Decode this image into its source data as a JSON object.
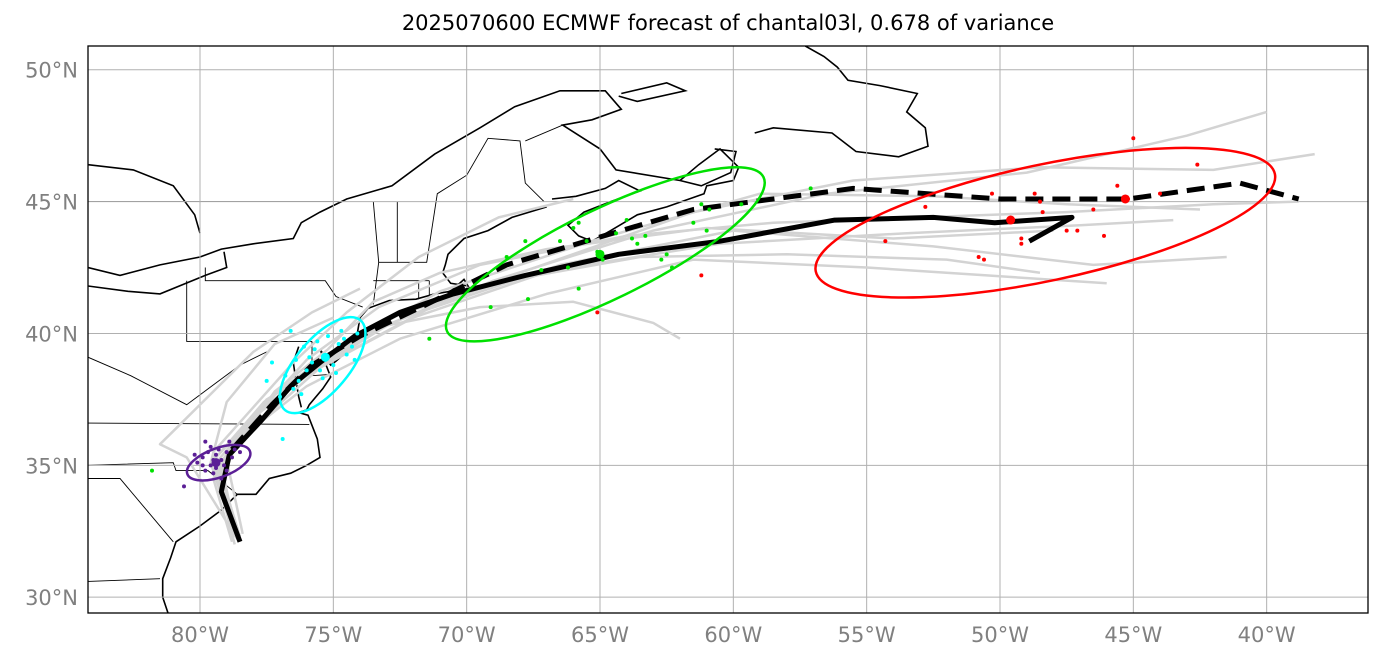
{
  "title": "2025070600 ECMWF forecast of chantal03l, 0.678 of variance",
  "axes": {
    "lat_labels": [
      "30°N",
      "35°N",
      "40°N",
      "45°N",
      "50°N"
    ],
    "lon_labels": [
      "80°W",
      "75°W",
      "70°W",
      "65°W",
      "60°W",
      "55°W",
      "50°W",
      "45°W",
      "40°W"
    ]
  },
  "colors": {
    "ensemble": "#d3d3d3",
    "track": "#000000",
    "stage1": "#5b1f96",
    "stage2": "#00ffff",
    "stage3": "#00e000",
    "stage4": "#ff0000",
    "grid": "#b0b0b0",
    "coast": "#000000"
  },
  "chart_data": {
    "type": "map-track",
    "domain": {
      "lon": [
        -84.2,
        -36.2
      ],
      "lat": [
        29.4,
        50.9
      ]
    },
    "gridlines": {
      "lon": [
        -80,
        -75,
        -70,
        -65,
        -60,
        -55,
        -50,
        -45,
        -40
      ],
      "lat": [
        30,
        35,
        40,
        45,
        50
      ]
    },
    "mean_track_solid": [
      [
        -78.5,
        32.1
      ],
      [
        -79.2,
        34.0
      ],
      [
        -78.9,
        35.4
      ],
      [
        -77.7,
        36.7
      ],
      [
        -76.6,
        38.0
      ],
      [
        -75.5,
        38.9
      ],
      [
        -74.2,
        39.9
      ],
      [
        -72.5,
        40.8
      ],
      [
        -70.5,
        41.5
      ],
      [
        -67.8,
        42.2
      ],
      [
        -64.3,
        43.0
      ],
      [
        -60.5,
        43.5
      ],
      [
        -56.2,
        44.3
      ],
      [
        -52.5,
        44.4
      ],
      [
        -50.2,
        44.2
      ],
      [
        -47.3,
        44.4
      ],
      [
        -48.9,
        43.5
      ]
    ],
    "mean_track_dashed": [
      [
        -78.8,
        35.6
      ],
      [
        -77.3,
        37.3
      ],
      [
        -75.8,
        38.8
      ],
      [
        -74.0,
        39.9
      ],
      [
        -71.5,
        41.1
      ],
      [
        -68.5,
        42.6
      ],
      [
        -64.2,
        43.9
      ],
      [
        -61.5,
        44.7
      ],
      [
        -55.5,
        45.5
      ],
      [
        -50.0,
        45.1
      ],
      [
        -45.2,
        45.1
      ],
      [
        -41.0,
        45.7
      ],
      [
        -38.8,
        45.1
      ]
    ],
    "ensemble_tracks": [
      [
        [
          -78.8,
          32.1
        ],
        [
          -79.5,
          34.5
        ],
        [
          -78.2,
          36.3
        ],
        [
          -76.3,
          38.2
        ],
        [
          -73.5,
          40.1
        ],
        [
          -69.0,
          42.0
        ],
        [
          -63.0,
          43.9
        ],
        [
          -56.5,
          45.3
        ],
        [
          -49.0,
          46.1
        ],
        [
          -43.0,
          47.5
        ],
        [
          -40.0,
          48.4
        ]
      ],
      [
        [
          -78.6,
          32.3
        ],
        [
          -79.6,
          35.1
        ],
        [
          -77.8,
          37.0
        ],
        [
          -75.9,
          38.6
        ],
        [
          -72.8,
          40.4
        ],
        [
          -68.0,
          42.3
        ],
        [
          -61.5,
          44.6
        ],
        [
          -55.5,
          45.8
        ],
        [
          -48.5,
          46.3
        ],
        [
          -42.0,
          46.2
        ],
        [
          -38.2,
          46.8
        ]
      ],
      [
        [
          -78.5,
          32.2
        ],
        [
          -79.3,
          35.0
        ],
        [
          -77.5,
          37.5
        ],
        [
          -75.0,
          39.0
        ],
        [
          -71.5,
          40.9
        ],
        [
          -66.5,
          42.6
        ],
        [
          -60.0,
          43.9
        ],
        [
          -52.5,
          43.3
        ],
        [
          -46.5,
          42.6
        ],
        [
          -41.5,
          42.9
        ]
      ],
      [
        [
          -78.7,
          32.0
        ],
        [
          -79.4,
          34.8
        ],
        [
          -78.0,
          36.8
        ],
        [
          -76.0,
          38.4
        ],
        [
          -73.0,
          40.3
        ],
        [
          -69.5,
          41.0
        ],
        [
          -66.0,
          41.2
        ],
        [
          -63.0,
          40.4
        ],
        [
          -62.0,
          39.8
        ]
      ],
      [
        [
          -78.4,
          32.4
        ],
        [
          -79.0,
          35.2
        ],
        [
          -77.2,
          37.8
        ],
        [
          -75.2,
          39.4
        ],
        [
          -73.5,
          41.2
        ],
        [
          -71.0,
          42.3
        ],
        [
          -67.0,
          43.2
        ],
        [
          -61.0,
          44.0
        ],
        [
          -54.0,
          43.6
        ],
        [
          -48.0,
          43.9
        ]
      ],
      [
        [
          -78.6,
          32.2
        ],
        [
          -79.5,
          35.5
        ],
        [
          -78.0,
          37.2
        ],
        [
          -76.5,
          38.9
        ],
        [
          -74.5,
          40.8
        ],
        [
          -71.8,
          42.9
        ],
        [
          -68.8,
          44.4
        ],
        [
          -66.0,
          45.1
        ]
      ],
      [
        [
          -78.5,
          32.3
        ],
        [
          -79.3,
          34.9
        ],
        [
          -77.9,
          36.5
        ],
        [
          -76.0,
          38.0
        ],
        [
          -72.5,
          39.8
        ],
        [
          -67.0,
          41.5
        ],
        [
          -61.5,
          42.8
        ],
        [
          -55.0,
          42.5
        ],
        [
          -50.5,
          42.2
        ],
        [
          -46.0,
          41.9
        ]
      ],
      [
        [
          -78.6,
          32.2
        ],
        [
          -79.2,
          35.0
        ],
        [
          -77.5,
          36.9
        ],
        [
          -75.5,
          38.7
        ],
        [
          -72.0,
          40.6
        ],
        [
          -66.8,
          42.4
        ],
        [
          -60.5,
          43.4
        ],
        [
          -53.5,
          43.8
        ],
        [
          -47.0,
          44.1
        ],
        [
          -43.5,
          44.3
        ]
      ],
      [
        [
          -78.5,
          32.1
        ],
        [
          -79.4,
          35.3
        ],
        [
          -77.6,
          37.4
        ],
        [
          -75.2,
          39.2
        ],
        [
          -71.0,
          41.6
        ],
        [
          -65.0,
          43.6
        ],
        [
          -59.0,
          45.3
        ],
        [
          -52.5,
          45.2
        ],
        [
          -47.5,
          44.9
        ],
        [
          -42.5,
          44.7
        ]
      ],
      [
        [
          -78.6,
          32.2
        ],
        [
          -80.5,
          35.3
        ],
        [
          -81.5,
          35.8
        ],
        [
          -80.8,
          36.5
        ],
        [
          -79.5,
          37.8
        ],
        [
          -78.0,
          39.3
        ],
        [
          -75.8,
          40.8
        ],
        [
          -74.0,
          41.7
        ]
      ],
      [
        [
          -78.7,
          32.3
        ],
        [
          -79.6,
          35.1
        ],
        [
          -79.0,
          37.4
        ],
        [
          -77.2,
          39.6
        ],
        [
          -75.0,
          40.6
        ]
      ],
      [
        [
          -78.5,
          32.2
        ],
        [
          -79.3,
          35.0
        ],
        [
          -77.7,
          37.1
        ],
        [
          -76.0,
          39.0
        ],
        [
          -73.3,
          41.0
        ],
        [
          -69.5,
          42.6
        ],
        [
          -64.0,
          43.7
        ],
        [
          -58.5,
          44.2
        ],
        [
          -53.0,
          44.4
        ],
        [
          -47.5,
          44.6
        ],
        [
          -42.0,
          44.9
        ],
        [
          -38.8,
          45.0
        ]
      ],
      [
        [
          -78.5,
          32.2
        ],
        [
          -79.4,
          35.1
        ],
        [
          -77.8,
          37.0
        ],
        [
          -75.7,
          38.8
        ],
        [
          -72.6,
          40.7
        ],
        [
          -68.5,
          42.0
        ],
        [
          -63.5,
          42.9
        ],
        [
          -58.0,
          43.0
        ],
        [
          -52.0,
          42.8
        ],
        [
          -48.5,
          42.3
        ]
      ]
    ],
    "stage_points": {
      "stage1": [
        [
          -79.6,
          35.0
        ],
        [
          -79.2,
          35.2
        ],
        [
          -79.9,
          35.3
        ],
        [
          -79.4,
          34.9
        ],
        [
          -79.0,
          35.5
        ],
        [
          -79.8,
          34.8
        ],
        [
          -79.3,
          35.6
        ],
        [
          -79.7,
          35.5
        ],
        [
          -79.1,
          35.0
        ],
        [
          -79.5,
          34.7
        ],
        [
          -78.8,
          35.3
        ],
        [
          -80.1,
          35.1
        ],
        [
          -79.0,
          34.8
        ],
        [
          -79.6,
          35.7
        ],
        [
          -79.9,
          35.0
        ],
        [
          -78.7,
          35.6
        ],
        [
          -79.4,
          35.4
        ],
        [
          -80.2,
          35.4
        ],
        [
          -78.5,
          35.5
        ],
        [
          -79.2,
          34.5
        ],
        [
          -80.6,
          34.2
        ],
        [
          -79.8,
          35.9
        ],
        [
          -78.9,
          35.9
        ],
        [
          -79.5,
          35.2
        ]
      ],
      "stage2": [
        [
          -74.8,
          39.6
        ],
        [
          -75.3,
          39.0
        ],
        [
          -76.0,
          38.6
        ],
        [
          -74.5,
          39.2
        ],
        [
          -75.7,
          39.4
        ],
        [
          -76.3,
          38.2
        ],
        [
          -75.0,
          38.8
        ],
        [
          -74.6,
          39.8
        ],
        [
          -75.9,
          39.1
        ],
        [
          -76.5,
          37.9
        ],
        [
          -75.5,
          38.6
        ],
        [
          -74.3,
          39.5
        ],
        [
          -76.8,
          38.4
        ],
        [
          -77.3,
          38.9
        ],
        [
          -75.2,
          39.9
        ],
        [
          -76.1,
          39.5
        ],
        [
          -74.9,
          38.5
        ],
        [
          -77.0,
          37.6
        ],
        [
          -76.6,
          40.1
        ],
        [
          -75.8,
          38.9
        ],
        [
          -74.1,
          40.0
        ],
        [
          -76.2,
          37.7
        ],
        [
          -75.4,
          38.3
        ],
        [
          -76.9,
          36.0
        ],
        [
          -74.7,
          40.1
        ],
        [
          -75.6,
          39.7
        ],
        [
          -76.4,
          39.0
        ],
        [
          -77.5,
          38.2
        ],
        [
          -74.2,
          39.0
        ]
      ],
      "stage3": [
        [
          -65.1,
          43.1
        ],
        [
          -64.4,
          43.8
        ],
        [
          -63.8,
          43.6
        ],
        [
          -65.5,
          43.5
        ],
        [
          -66.2,
          42.5
        ],
        [
          -67.2,
          42.4
        ],
        [
          -64.9,
          42.8
        ],
        [
          -63.3,
          43.7
        ],
        [
          -62.3,
          42.5
        ],
        [
          -61.2,
          44.9
        ],
        [
          -60.9,
          44.7
        ],
        [
          -61.5,
          44.2
        ],
        [
          -62.5,
          43.0
        ],
        [
          -66.5,
          43.5
        ],
        [
          -68.5,
          42.9
        ],
        [
          -69.1,
          41.0
        ],
        [
          -67.7,
          41.3
        ],
        [
          -65.8,
          41.7
        ],
        [
          -64.0,
          44.3
        ],
        [
          -61.0,
          43.9
        ],
        [
          -59.7,
          44.9
        ],
        [
          -57.1,
          45.5
        ],
        [
          -71.4,
          39.8
        ],
        [
          -81.8,
          34.8
        ],
        [
          -65.8,
          44.2
        ],
        [
          -63.6,
          43.4
        ],
        [
          -62.7,
          42.8
        ],
        [
          -66.0,
          44.0
        ],
        [
          -67.8,
          43.5
        ]
      ],
      "stage4": [
        [
          -49.6,
          44.3
        ],
        [
          -45.2,
          45.1
        ],
        [
          -47.5,
          43.9
        ],
        [
          -48.4,
          44.6
        ],
        [
          -49.2,
          43.6
        ],
        [
          -50.8,
          42.9
        ],
        [
          -54.3,
          43.5
        ],
        [
          -52.8,
          44.8
        ],
        [
          -46.5,
          44.7
        ],
        [
          -45.6,
          45.6
        ],
        [
          -42.6,
          46.4
        ],
        [
          -45.0,
          47.4
        ],
        [
          -48.7,
          45.3
        ],
        [
          -50.3,
          45.3
        ],
        [
          -49.2,
          43.4
        ],
        [
          -47.1,
          43.9
        ],
        [
          -65.1,
          40.8
        ],
        [
          -61.2,
          42.2
        ],
        [
          -50.6,
          42.8
        ],
        [
          -48.5,
          45.0
        ],
        [
          -46.1,
          43.7
        ],
        [
          -44.0,
          45.3
        ]
      ]
    },
    "stage_means": {
      "stage1": [
        -79.4,
        35.1
      ],
      "stage2": [
        -75.3,
        39.1
      ],
      "stage3": [
        -65.0,
        43.0
      ],
      "stage4": [
        -49.6,
        44.3
      ],
      "stage4b": [
        -45.3,
        45.1
      ]
    },
    "stage_ellipses": {
      "stage1": {
        "center": [
          -79.3,
          35.1
        ],
        "a_deg": 1.25,
        "b_deg": 0.55,
        "angle": 20
      },
      "stage2": {
        "center": [
          -75.4,
          38.8
        ],
        "a_deg": 2.2,
        "b_deg": 1.0,
        "angle": 50
      },
      "stage3": {
        "center": [
          -64.8,
          43.0
        ],
        "a_deg": 6.6,
        "b_deg": 1.7,
        "angle": 26
      },
      "stage4": {
        "center": [
          -48.3,
          44.2
        ],
        "a_deg": 8.8,
        "b_deg": 2.2,
        "angle": 12
      }
    }
  }
}
